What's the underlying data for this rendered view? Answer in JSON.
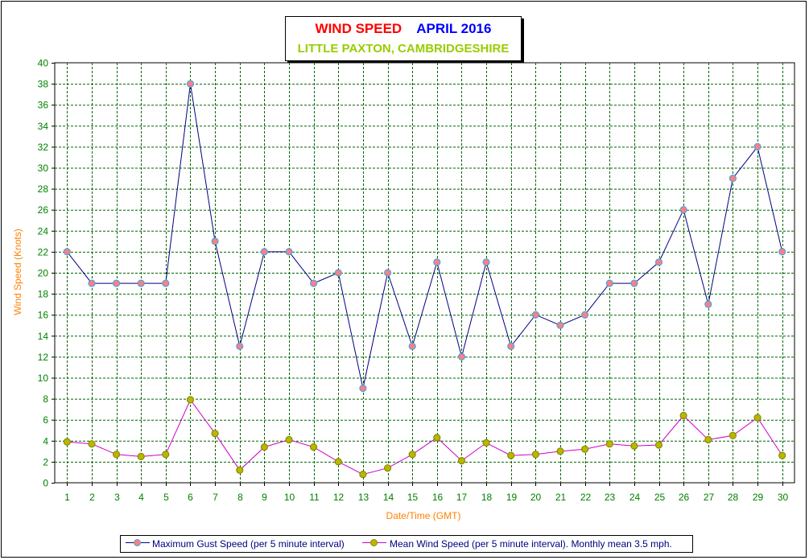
{
  "chart_data": {
    "type": "line",
    "title_part1": "WIND SPEED",
    "title_part2": "APRIL 2016",
    "subtitle": "LITTLE PAXTON, CAMBRIDGESHIRE",
    "xlabel": "Date/Time (GMT)",
    "ylabel": "Wind Speed (Knots)",
    "ylim": [
      0,
      40
    ],
    "ytick_step": 2,
    "grid": true,
    "legend_position": "bottom",
    "categories": [
      1,
      2,
      3,
      4,
      5,
      6,
      7,
      8,
      9,
      10,
      11,
      12,
      13,
      14,
      15,
      16,
      17,
      18,
      19,
      20,
      21,
      22,
      23,
      24,
      25,
      26,
      27,
      28,
      29,
      30
    ],
    "series": [
      {
        "name": "Maximum Gust Speed (per 5 minute interval)",
        "line_color": "#000080",
        "marker_fill": "#ff7f7f",
        "marker_edge": "#4fa3e0",
        "values": [
          22,
          19,
          19,
          19,
          19,
          38,
          23,
          13,
          22,
          22,
          19,
          20,
          9,
          20,
          13,
          21,
          12,
          21,
          13,
          16,
          15,
          16,
          19,
          19,
          21,
          26,
          17,
          29,
          32,
          22
        ]
      },
      {
        "name": "Mean Wind Speed (per 5 minute interval). Monthly mean 3.5 mph.",
        "line_color": "#cc00cc",
        "marker_fill": "#b8b800",
        "marker_edge": "#8a8a00",
        "values": [
          3.9,
          3.7,
          2.7,
          2.5,
          2.7,
          7.9,
          4.7,
          1.2,
          3.4,
          4.1,
          3.4,
          2.0,
          0.8,
          1.4,
          2.7,
          4.3,
          2.1,
          3.8,
          2.6,
          2.7,
          3.0,
          3.2,
          3.7,
          3.5,
          3.6,
          6.4,
          4.1,
          4.5,
          6.2,
          2.6
        ]
      }
    ]
  },
  "colors": {
    "grid": "#006400",
    "tick_text": "#008000",
    "axis_title": "#ff8000",
    "title_red": "#ff0000",
    "title_blue": "#0000ff",
    "subtitle": "#99cc00"
  }
}
